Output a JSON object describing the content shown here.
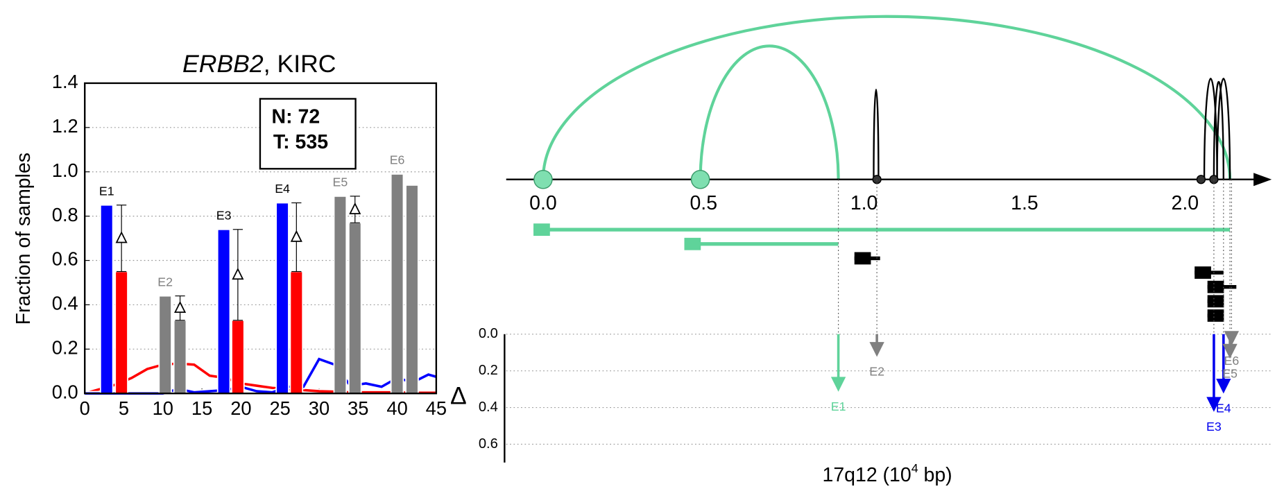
{
  "chart_data": [
    {
      "type": "bar",
      "title": [
        {
          "text": "ERBB2",
          "style": "italic"
        },
        {
          "text": ", KIRC",
          "style": "normal"
        }
      ],
      "ylabel": "Fraction of samples",
      "annotations": [
        "N: 72",
        "T: 535"
      ],
      "xlim": [
        0,
        45
      ],
      "ylim": [
        0,
        1.4
      ],
      "xticks": [
        0,
        5,
        10,
        15,
        20,
        25,
        30,
        35,
        40,
        45
      ],
      "yticks": [
        {
          "value": 0,
          "label": "0.0"
        },
        {
          "value": 0.2,
          "label": "0.2"
        },
        {
          "value": 0.4,
          "label": "0.4"
        },
        {
          "value": 0.6,
          "label": "0.6"
        },
        {
          "value": 0.8,
          "label": "0.8"
        },
        {
          "value": 1.0,
          "label": "1.0"
        },
        {
          "value": 1.2,
          "label": "1.2"
        },
        {
          "value": 1.4,
          "label": "1.4"
        }
      ],
      "grid": true,
      "groups": [
        {
          "name": "E1",
          "name_color": "#000000",
          "x": [
            2.8,
            4.7
          ],
          "values": [
            0.85,
            0.55
          ],
          "colors": [
            "#0000ff",
            "#ff0000"
          ],
          "delta_range": [
            0.55,
            0.85
          ]
        },
        {
          "name": "E2",
          "name_color": "#808080",
          "x": [
            10.3,
            12.2
          ],
          "values": [
            0.44,
            0.33
          ],
          "colors": [
            "#808080",
            "#808080"
          ],
          "delta_range": [
            0.33,
            0.44
          ]
        },
        {
          "name": "E3",
          "name_color": "#000000",
          "x": [
            17.8,
            19.6
          ],
          "values": [
            0.74,
            0.33
          ],
          "colors": [
            "#0000ff",
            "#ff0000"
          ],
          "delta_range": [
            0.33,
            0.74
          ]
        },
        {
          "name": "E4",
          "name_color": "#000000",
          "x": [
            25.3,
            27.1
          ],
          "values": [
            0.86,
            0.55
          ],
          "colors": [
            "#0000ff",
            "#ff0000"
          ],
          "delta_range": [
            0.55,
            0.86
          ]
        },
        {
          "name": "E5",
          "name_color": "#808080",
          "x": [
            32.7,
            34.6
          ],
          "values": [
            0.89,
            0.77
          ],
          "colors": [
            "#808080",
            "#808080"
          ],
          "delta_range": [
            0.77,
            0.89
          ]
        },
        {
          "name": "E6",
          "name_color": "#808080",
          "x": [
            40.0,
            41.9
          ],
          "values": [
            0.99,
            0.94
          ],
          "colors": [
            "#808080",
            "#808080"
          ]
        }
      ],
      "x": [
        0,
        2,
        4,
        6,
        8,
        10,
        12,
        14,
        16,
        18,
        20,
        22,
        24,
        26,
        28,
        30,
        32,
        34,
        36,
        38,
        40,
        42,
        44,
        45
      ],
      "lines": [
        {
          "color": "#ff0000",
          "values": [
            0,
            0.02,
            0.04,
            0.07,
            0.11,
            0.13,
            0.135,
            0.13,
            0.08,
            0.07,
            0.045,
            0.035,
            0.025,
            0.02,
            0.015,
            0.01,
            0.008,
            0.005,
            0.005,
            0.005,
            0.005,
            0.003,
            0.003,
            0.003
          ]
        },
        {
          "color": "#0000ff",
          "values": [
            0,
            0,
            0,
            0,
            0,
            0,
            0.02,
            0.005,
            0.01,
            0.015,
            0.03,
            0.01,
            0.005,
            0.03,
            0.03,
            0.155,
            0.13,
            0.035,
            0.045,
            0.03,
            0.07,
            0.05,
            0.085,
            0.075
          ]
        }
      ]
    },
    {
      "type": "genome",
      "xlabel": [
        {
          "text": "17q12 (10",
          "shift": "normal"
        },
        {
          "text": "4",
          "shift": "super"
        },
        {
          "text": " bp)",
          "shift": "normal"
        }
      ],
      "xlim": [
        -0.115,
        2.27
      ],
      "xticks": [
        {
          "value": 0,
          "label": "0.0"
        },
        {
          "value": 0.5,
          "label": "0.5"
        },
        {
          "value": 1.0,
          "label": "1.0"
        },
        {
          "value": 1.5,
          "label": "1.5"
        },
        {
          "value": 2.0,
          "label": "2.0"
        }
      ],
      "sites": [
        {
          "x": 0,
          "marker": "large",
          "color": "#7fdfb0"
        },
        {
          "x": 0.49,
          "marker": "large",
          "color": "#7fdfb0"
        },
        {
          "x": 1.04,
          "marker": "dot",
          "color": "#333333"
        },
        {
          "x": 2.05,
          "marker": "dot",
          "color": "#333333"
        },
        {
          "x": 2.09,
          "marker": "dot",
          "color": "#333333"
        }
      ],
      "arcs": [
        {
          "start": 0,
          "end": 2.14,
          "color": "#5fd39a"
        },
        {
          "start": 0.49,
          "end": 0.92,
          "color": "#5fd39a"
        },
        {
          "start": 1.03,
          "end": 1.045,
          "color": "#000000"
        },
        {
          "start": 2.06,
          "end": 2.1,
          "color": "#000000"
        },
        {
          "start": 2.09,
          "end": 2.12,
          "color": "#000000"
        },
        {
          "start": 2.1,
          "end": 2.14,
          "color": "#000000"
        }
      ],
      "transcripts": [
        {
          "start": -0.03,
          "end": 2.14,
          "color": "#5fd39a"
        },
        {
          "start": 0.44,
          "end": 0.92,
          "color": "#5fd39a"
        },
        {
          "start": 0.97,
          "end": 1.05,
          "color": "#000000"
        },
        {
          "start": 2.03,
          "end": 2.12,
          "color": "#000000"
        },
        {
          "start": 2.07,
          "end": 2.16,
          "color": "#000000"
        },
        {
          "start": 2.07,
          "end": 2.12,
          "color": "#000000"
        },
        {
          "start": 2.07,
          "end": 2.11,
          "color": "#000000"
        }
      ],
      "ylabel": "Δ",
      "ylim": [
        0,
        0.7
      ],
      "yticks": [
        {
          "value": 0,
          "label": "0.0"
        },
        {
          "value": 0.2,
          "label": "0.2"
        },
        {
          "value": 0.4,
          "label": "0.4"
        },
        {
          "value": 0.6,
          "label": "0.6"
        }
      ],
      "grid": true,
      "exons": [
        {
          "name": "E1",
          "x": 0.92,
          "delta": 0.3,
          "color": "#5fd39a"
        },
        {
          "name": "E2",
          "x": 1.04,
          "delta": 0.11,
          "color": "#808080"
        },
        {
          "name": "E3",
          "x": 2.09,
          "delta": 0.41,
          "color": "#0000ee"
        },
        {
          "name": "E4",
          "x": 2.12,
          "delta": 0.31,
          "color": "#0000ee"
        },
        {
          "name": "E5",
          "x": 2.14,
          "delta": 0.12,
          "color": "#808080"
        },
        {
          "name": "E6",
          "x": 2.145,
          "delta": 0.05,
          "color": "#808080"
        }
      ]
    }
  ]
}
